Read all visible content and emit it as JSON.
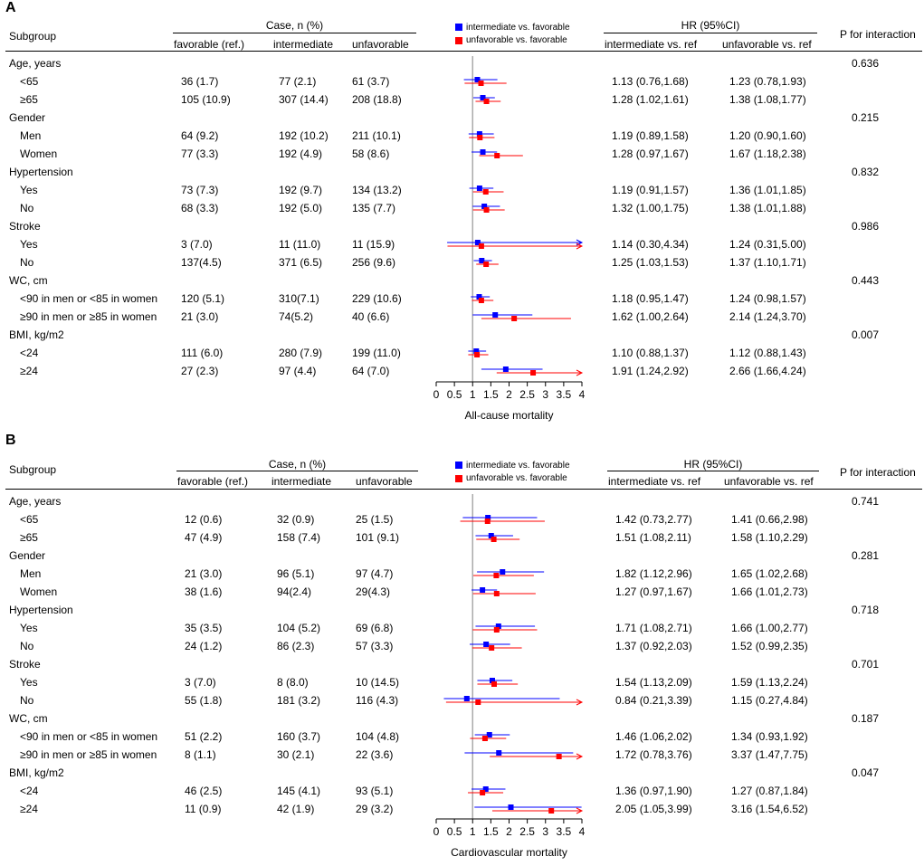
{
  "colors": {
    "intermediate": "#0000ff",
    "unfavorable": "#ff0000",
    "refline": "#aaaaaa"
  },
  "header": {
    "subgroup": "Subgroup",
    "case_title": "Case, n (%)",
    "col_favorable": "favorable (ref.)",
    "col_intermediate": "intermediate",
    "col_unfavorable": "unfavorable",
    "hr_title": "HR (95%CI)",
    "hr_intermediate": "intermediate vs. ref",
    "hr_unfavorable": "unfavorable vs. ref",
    "p_interaction": "P for interaction"
  },
  "panels": [
    {
      "label": "A",
      "legend": {
        "intermediate": "intermediate vs. favorable",
        "unfavorable": "unfavorable vs. favorable"
      },
      "groups": [
        {
          "name": "Age, years",
          "p": "0.636",
          "rows": [
            {
              "label": "<65",
              "fav": "36 (1.7)",
              "int": "77 (2.1)",
              "unf": "61 (3.7)",
              "hr_int": "1.13 (0.76,1.68)",
              "hr_unf": "1.23 (0.78,1.93)"
            },
            {
              "label": "≥65",
              "fav": "105 (10.9)",
              "int": "307 (14.4)",
              "unf": "208 (18.8)",
              "hr_int": "1.28 (1.02,1.61)",
              "hr_unf": "1.38 (1.08,1.77)"
            }
          ]
        },
        {
          "name": "Gender",
          "p": "0.215",
          "rows": [
            {
              "label": "Men",
              "fav": "64 (9.2)",
              "int": "192 (10.2)",
              "unf": "211 (10.1)",
              "hr_int": "1.19 (0.89,1.58)",
              "hr_unf": "1.20 (0.90,1.60)"
            },
            {
              "label": "Women",
              "fav": "77 (3.3)",
              "int": "192 (4.9)",
              "unf": "58 (8.6)",
              "hr_int": "1.28 (0.97,1.67)",
              "hr_unf": "1.67 (1.18,2.38)"
            }
          ]
        },
        {
          "name": "Hypertension",
          "p": "0.832",
          "rows": [
            {
              "label": "Yes",
              "fav": "73 (7.3)",
              "int": "192 (9.7)",
              "unf": "134 (13.2)",
              "hr_int": "1.19 (0.91,1.57)",
              "hr_unf": "1.36 (1.01,1.85)"
            },
            {
              "label": "No",
              "fav": "68 (3.3)",
              "int": "192 (5.0)",
              "unf": "135 (7.7)",
              "hr_int": "1.32 (1.00,1.75)",
              "hr_unf": "1.38 (1.01,1.88)"
            }
          ]
        },
        {
          "name": "Stroke",
          "p": "0.986",
          "rows": [
            {
              "label": "Yes",
              "fav": "3 (7.0)",
              "int": "11 (11.0)",
              "unf": "11 (15.9)",
              "hr_int": "1.14 (0.30,4.34)",
              "hr_unf": "1.24 (0.31,5.00)"
            },
            {
              "label": "No",
              "fav": "137(4.5)",
              "int": "371 (6.5)",
              "unf": "256 (9.6)",
              "hr_int": "1.25 (1.03,1.53)",
              "hr_unf": "1.37 (1.10,1.71)"
            }
          ]
        },
        {
          "name": "WC, cm",
          "p": "0.443",
          "rows": [
            {
              "label": "<90 in men or <85 in women",
              "fav": "120 (5.1)",
              "int": "310(7.1)",
              "unf": "229 (10.6)",
              "hr_int": "1.18 (0.95,1.47)",
              "hr_unf": "1.24 (0.98,1.57)"
            },
            {
              "label": "≥90 in men or ≥85 in women",
              "fav": "21 (3.0)",
              "int": "74(5.2)",
              "unf": "40 (6.6)",
              "hr_int": "1.62 (1.00,2.64)",
              "hr_unf": "2.14 (1.24,3.70)"
            }
          ]
        },
        {
          "name": "BMI, kg/m2",
          "p": "0.007",
          "rows": [
            {
              "label": "<24",
              "fav": "111 (6.0)",
              "int": "280 (7.9)",
              "unf": "199 (11.0)",
              "hr_int": "1.10 (0.88,1.37)",
              "hr_unf": "1.12 (0.88,1.43)"
            },
            {
              "label": "≥24",
              "fav": "27 (2.3)",
              "int": "97 (4.4)",
              "unf": "64 (7.0)",
              "hr_int": "1.91 (1.24,2.92)",
              "hr_unf": "2.66 (1.66,4.24)"
            }
          ]
        }
      ],
      "chart_data": {
        "type": "forest",
        "xlabel": "All-cause mortality",
        "xlim": [
          0,
          4
        ],
        "ticks": [
          "0",
          "0.5",
          "1",
          "1.5",
          "2",
          "2.5",
          "3",
          "3.5",
          "4"
        ],
        "reference_line": 1,
        "series": [
          {
            "name": "intermediate vs. favorable",
            "points": [
              {
                "hr": 1.13,
                "lo": 0.76,
                "hi": 1.68
              },
              {
                "hr": 1.28,
                "lo": 1.02,
                "hi": 1.61
              },
              {
                "hr": 1.19,
                "lo": 0.89,
                "hi": 1.58
              },
              {
                "hr": 1.28,
                "lo": 0.97,
                "hi": 1.67
              },
              {
                "hr": 1.19,
                "lo": 0.91,
                "hi": 1.57
              },
              {
                "hr": 1.32,
                "lo": 1.0,
                "hi": 1.75
              },
              {
                "hr": 1.14,
                "lo": 0.3,
                "hi": 4.34
              },
              {
                "hr": 1.25,
                "lo": 1.03,
                "hi": 1.53
              },
              {
                "hr": 1.18,
                "lo": 0.95,
                "hi": 1.47
              },
              {
                "hr": 1.62,
                "lo": 1.0,
                "hi": 2.64
              },
              {
                "hr": 1.1,
                "lo": 0.88,
                "hi": 1.37
              },
              {
                "hr": 1.91,
                "lo": 1.24,
                "hi": 2.92
              }
            ]
          },
          {
            "name": "unfavorable vs. favorable",
            "points": [
              {
                "hr": 1.23,
                "lo": 0.78,
                "hi": 1.93
              },
              {
                "hr": 1.38,
                "lo": 1.08,
                "hi": 1.77
              },
              {
                "hr": 1.2,
                "lo": 0.9,
                "hi": 1.6
              },
              {
                "hr": 1.67,
                "lo": 1.18,
                "hi": 2.38
              },
              {
                "hr": 1.36,
                "lo": 1.01,
                "hi": 1.85
              },
              {
                "hr": 1.38,
                "lo": 1.01,
                "hi": 1.88
              },
              {
                "hr": 1.24,
                "lo": 0.31,
                "hi": 5.0
              },
              {
                "hr": 1.37,
                "lo": 1.1,
                "hi": 1.71
              },
              {
                "hr": 1.24,
                "lo": 0.98,
                "hi": 1.57
              },
              {
                "hr": 2.14,
                "lo": 1.24,
                "hi": 3.7
              },
              {
                "hr": 1.12,
                "lo": 0.88,
                "hi": 1.43
              },
              {
                "hr": 2.66,
                "lo": 1.66,
                "hi": 4.24
              }
            ]
          }
        ]
      }
    },
    {
      "label": "B",
      "legend": {
        "intermediate": "intermediate vs. favorable",
        "unfavorable": "unfavorable vs. favorable"
      },
      "groups": [
        {
          "name": "Age, years",
          "p": "0.741",
          "rows": [
            {
              "label": "<65",
              "fav": "12 (0.6)",
              "int": "32 (0.9)",
              "unf": "25 (1.5)",
              "hr_int": "1.42 (0.73,2.77)",
              "hr_unf": "1.41 (0.66,2.98)"
            },
            {
              "label": "≥65",
              "fav": "47 (4.9)",
              "int": "158 (7.4)",
              "unf": "101 (9.1)",
              "hr_int": "1.51 (1.08,2.11)",
              "hr_unf": "1.58 (1.10,2.29)"
            }
          ]
        },
        {
          "name": "Gender",
          "p": "0.281",
          "rows": [
            {
              "label": "Men",
              "fav": "21 (3.0)",
              "int": "96 (5.1)",
              "unf": "97 (4.7)",
              "hr_int": "1.82 (1.12,2.96)",
              "hr_unf": "1.65 (1.02,2.68)"
            },
            {
              "label": "Women",
              "fav": "38 (1.6)",
              "int": "94(2.4)",
              "unf": "29(4.3)",
              "hr_int": "1.27 (0.97,1.67)",
              "hr_unf": "1.66 (1.01,2.73)"
            }
          ]
        },
        {
          "name": "Hypertension",
          "p": "0.718",
          "rows": [
            {
              "label": "Yes",
              "fav": "35 (3.5)",
              "int": "104 (5.2)",
              "unf": "69 (6.8)",
              "hr_int": "1.71 (1.08,2.71)",
              "hr_unf": "1.66 (1.00,2.77)"
            },
            {
              "label": "No",
              "fav": "24 (1.2)",
              "int": "86 (2.3)",
              "unf": "57 (3.3)",
              "hr_int": "1.37 (0.92,2.03)",
              "hr_unf": "1.52 (0.99,2.35)"
            }
          ]
        },
        {
          "name": "Stroke",
          "p": "0.701",
          "rows": [
            {
              "label": "Yes",
              "fav": "3 (7.0)",
              "int": "8 (8.0)",
              "unf": "10 (14.5)",
              "hr_int": "1.54 (1.13,2.09)",
              "hr_unf": "1.59 (1.13,2.24)"
            },
            {
              "label": "No",
              "fav": "55 (1.8)",
              "int": "181 (3.2)",
              "unf": "116 (4.3)",
              "hr_int": "0.84 (0.21,3.39)",
              "hr_unf": "1.15 (0.27,4.84)"
            }
          ]
        },
        {
          "name": "WC, cm",
          "p": "0.187",
          "rows": [
            {
              "label": "<90 in men or <85 in women",
              "fav": "51 (2.2)",
              "int": "160 (3.7)",
              "unf": "104 (4.8)",
              "hr_int": "1.46 (1.06,2.02)",
              "hr_unf": "1.34 (0.93,1.92)"
            },
            {
              "label": "≥90 in men or ≥85 in women",
              "fav": "8 (1.1)",
              "int": "30 (2.1)",
              "unf": "22 (3.6)",
              "hr_int": "1.72 (0.78,3.76)",
              "hr_unf": "3.37 (1.47,7.75)"
            }
          ]
        },
        {
          "name": "BMI, kg/m2",
          "p": "0.047",
          "rows": [
            {
              "label": "<24",
              "fav": "46 (2.5)",
              "int": "145 (4.1)",
              "unf": "93 (5.1)",
              "hr_int": "1.36 (0.97,1.90)",
              "hr_unf": "1.27 (0.87,1.84)"
            },
            {
              "label": "≥24",
              "fav": "11 (0.9)",
              "int": "42 (1.9)",
              "unf": "29 (3.2)",
              "hr_int": "2.05 (1.05,3.99)",
              "hr_unf": "3.16 (1.54,6.52)"
            }
          ]
        }
      ],
      "chart_data": {
        "type": "forest",
        "xlabel": "Cardiovascular mortality",
        "xlim": [
          0,
          4
        ],
        "ticks": [
          "0",
          "0.5",
          "1",
          "1.5",
          "2",
          "2.5",
          "3",
          "3.5",
          "4"
        ],
        "reference_line": 1,
        "series": [
          {
            "name": "intermediate vs. favorable",
            "points": [
              {
                "hr": 1.42,
                "lo": 0.73,
                "hi": 2.77
              },
              {
                "hr": 1.51,
                "lo": 1.08,
                "hi": 2.11
              },
              {
                "hr": 1.82,
                "lo": 1.12,
                "hi": 2.96
              },
              {
                "hr": 1.27,
                "lo": 0.97,
                "hi": 1.67
              },
              {
                "hr": 1.71,
                "lo": 1.08,
                "hi": 2.71
              },
              {
                "hr": 1.37,
                "lo": 0.92,
                "hi": 2.03
              },
              {
                "hr": 1.54,
                "lo": 1.13,
                "hi": 2.09
              },
              {
                "hr": 0.84,
                "lo": 0.21,
                "hi": 3.39
              },
              {
                "hr": 1.46,
                "lo": 1.06,
                "hi": 2.02
              },
              {
                "hr": 1.72,
                "lo": 0.78,
                "hi": 3.76
              },
              {
                "hr": 1.36,
                "lo": 0.97,
                "hi": 1.9
              },
              {
                "hr": 2.05,
                "lo": 1.05,
                "hi": 3.99
              }
            ]
          },
          {
            "name": "unfavorable vs. favorable",
            "points": [
              {
                "hr": 1.41,
                "lo": 0.66,
                "hi": 2.98
              },
              {
                "hr": 1.58,
                "lo": 1.1,
                "hi": 2.29
              },
              {
                "hr": 1.65,
                "lo": 1.02,
                "hi": 2.68
              },
              {
                "hr": 1.66,
                "lo": 1.01,
                "hi": 2.73
              },
              {
                "hr": 1.66,
                "lo": 1.0,
                "hi": 2.77
              },
              {
                "hr": 1.52,
                "lo": 0.99,
                "hi": 2.35
              },
              {
                "hr": 1.59,
                "lo": 1.13,
                "hi": 2.24
              },
              {
                "hr": 1.15,
                "lo": 0.27,
                "hi": 4.84
              },
              {
                "hr": 1.34,
                "lo": 0.93,
                "hi": 1.92
              },
              {
                "hr": 3.37,
                "lo": 1.47,
                "hi": 7.75
              },
              {
                "hr": 1.27,
                "lo": 0.87,
                "hi": 1.84
              },
              {
                "hr": 3.16,
                "lo": 1.54,
                "hi": 6.52
              }
            ]
          }
        ]
      }
    }
  ]
}
